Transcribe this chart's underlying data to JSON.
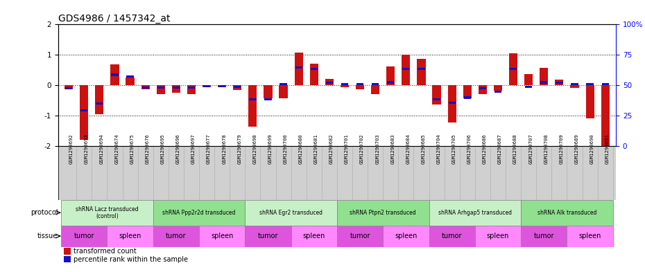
{
  "title": "GDS4986 / 1457342_at",
  "sample_ids": [
    "GSM1290692",
    "GSM1290693",
    "GSM1290694",
    "GSM1290674",
    "GSM1290675",
    "GSM1290676",
    "GSM1290695",
    "GSM1290696",
    "GSM1290697",
    "GSM1290677",
    "GSM1290678",
    "GSM1290679",
    "GSM1290698",
    "GSM1290699",
    "GSM1290700",
    "GSM1290680",
    "GSM1290681",
    "GSM1290682",
    "GSM1290701",
    "GSM1290702",
    "GSM1290703",
    "GSM1290683",
    "GSM1290684",
    "GSM1290685",
    "GSM1290704",
    "GSM1290705",
    "GSM1290706",
    "GSM1290686",
    "GSM1290687",
    "GSM1290688",
    "GSM1290707",
    "GSM1290708",
    "GSM1290709",
    "GSM1290689",
    "GSM1290690",
    "GSM1290691"
  ],
  "red_values": [
    -0.12,
    -1.78,
    -0.95,
    0.68,
    0.25,
    -0.12,
    -0.28,
    -0.25,
    -0.28,
    -0.05,
    -0.07,
    -0.15,
    -1.35,
    -0.42,
    -0.42,
    1.08,
    0.72,
    0.22,
    -0.07,
    -0.12,
    -0.28,
    0.62,
    1.0,
    0.88,
    -0.62,
    -1.22,
    -0.42,
    -0.28,
    -0.18,
    1.05,
    0.38,
    0.58,
    0.18,
    -0.08,
    -1.08,
    -2.05
  ],
  "blue_values": [
    -0.1,
    -0.82,
    -0.6,
    0.35,
    0.3,
    -0.06,
    -0.06,
    -0.06,
    -0.06,
    -0.02,
    -0.02,
    -0.05,
    -0.45,
    -0.45,
    0.05,
    0.58,
    0.55,
    0.08,
    0.05,
    0.05,
    0.05,
    0.1,
    0.55,
    0.55,
    -0.45,
    -0.58,
    -0.4,
    -0.1,
    -0.2,
    0.55,
    -0.05,
    0.1,
    0.08,
    0.05,
    0.05,
    0.05
  ],
  "protocols": [
    {
      "label": "shRNA Lacz transduced\n(control)",
      "start": 0,
      "end": 6,
      "color": "#c8f0c8"
    },
    {
      "label": "shRNA Ppp2r2d transduced",
      "start": 6,
      "end": 12,
      "color": "#90e090"
    },
    {
      "label": "shRNA Egr2 transduced",
      "start": 12,
      "end": 18,
      "color": "#c8f0c8"
    },
    {
      "label": "shRNA Ptpn2 transduced",
      "start": 18,
      "end": 24,
      "color": "#90e090"
    },
    {
      "label": "shRNA Arhgap5 transduced",
      "start": 24,
      "end": 30,
      "color": "#c8f0c8"
    },
    {
      "label": "shRNA Alk transduced",
      "start": 30,
      "end": 36,
      "color": "#90e090"
    }
  ],
  "tissues": [
    {
      "label": "tumor",
      "start": 0,
      "end": 3,
      "color": "#dd55dd"
    },
    {
      "label": "spleen",
      "start": 3,
      "end": 6,
      "color": "#ff88ff"
    },
    {
      "label": "tumor",
      "start": 6,
      "end": 9,
      "color": "#dd55dd"
    },
    {
      "label": "spleen",
      "start": 9,
      "end": 12,
      "color": "#ff88ff"
    },
    {
      "label": "tumor",
      "start": 12,
      "end": 15,
      "color": "#dd55dd"
    },
    {
      "label": "spleen",
      "start": 15,
      "end": 18,
      "color": "#ff88ff"
    },
    {
      "label": "tumor",
      "start": 18,
      "end": 21,
      "color": "#dd55dd"
    },
    {
      "label": "spleen",
      "start": 21,
      "end": 24,
      "color": "#ff88ff"
    },
    {
      "label": "tumor",
      "start": 24,
      "end": 27,
      "color": "#dd55dd"
    },
    {
      "label": "spleen",
      "start": 27,
      "end": 30,
      "color": "#ff88ff"
    },
    {
      "label": "tumor",
      "start": 30,
      "end": 33,
      "color": "#dd55dd"
    },
    {
      "label": "spleen",
      "start": 33,
      "end": 36,
      "color": "#ff88ff"
    }
  ],
  "ylim": [
    -2.0,
    2.0
  ],
  "y2lim": [
    0,
    100
  ],
  "yticks": [
    -2,
    -1,
    0,
    1,
    2
  ],
  "y2ticks": [
    0,
    25,
    50,
    75,
    100
  ],
  "red_color": "#cc1111",
  "blue_color": "#1111cc",
  "bar_width": 0.55,
  "title_fontsize": 10,
  "tick_fontsize": 5.2,
  "ytick_fontsize": 7.5,
  "xtick_bg": "#d0d0d0",
  "xtick_edge": "#aaaaaa"
}
